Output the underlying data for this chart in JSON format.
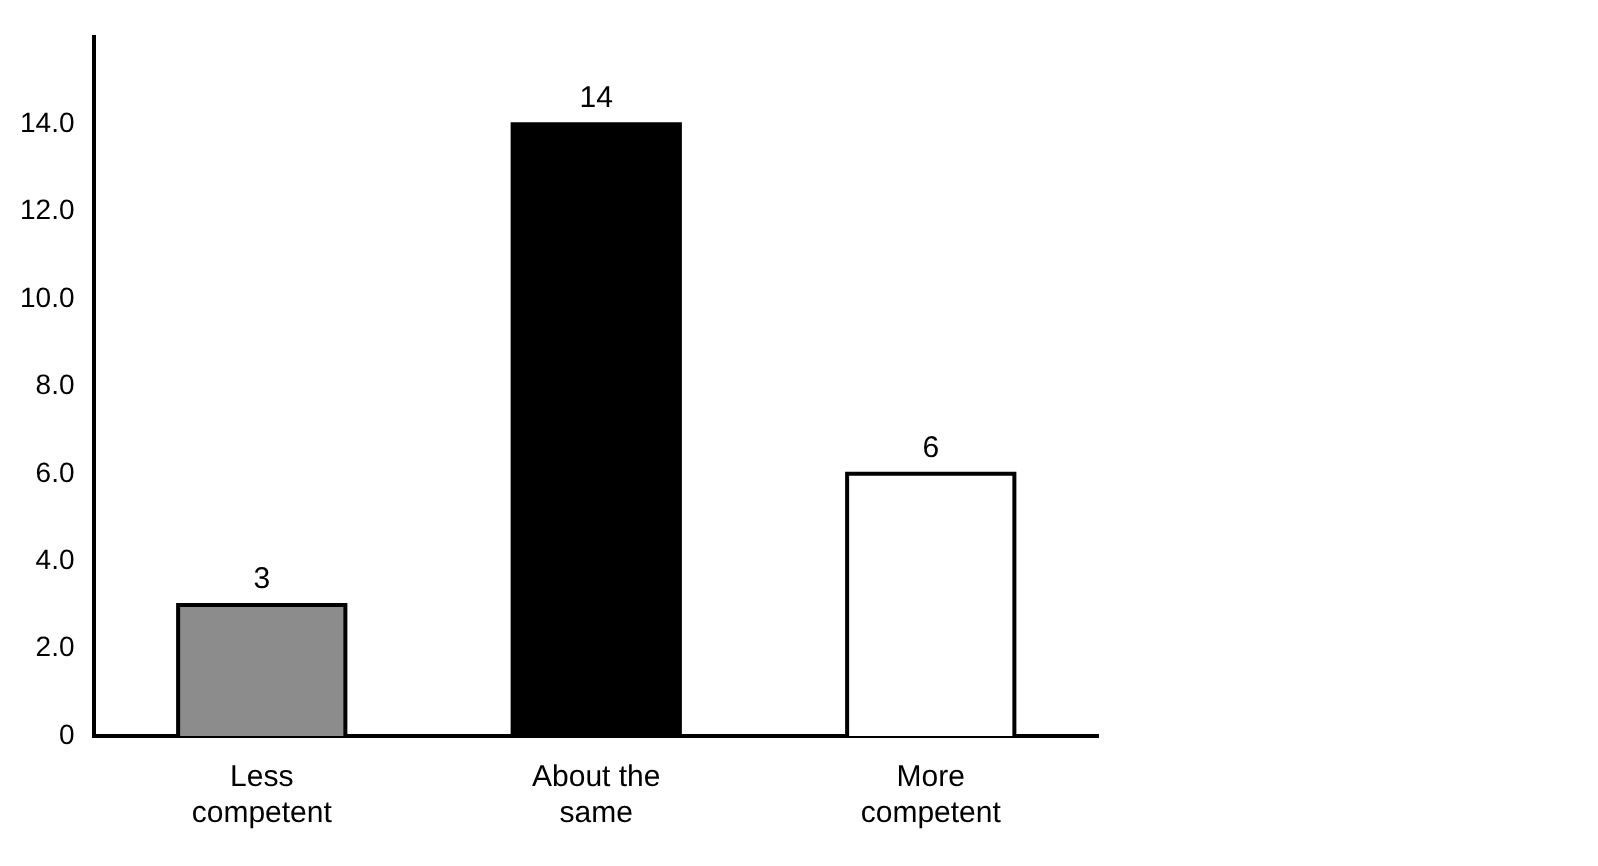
{
  "chart_data": {
    "type": "bar",
    "categories": [
      "Less competent",
      "About the same",
      "More competent"
    ],
    "values": [
      3,
      14,
      6
    ],
    "colors": [
      "#8c8c8c",
      "#000000",
      "#ffffff"
    ],
    "data_labels": true,
    "ylim": [
      0,
      16
    ],
    "yticks": [
      0,
      {
        "value": 2,
        "label": "2.0"
      },
      {
        "value": 4,
        "label": "4.0"
      },
      {
        "value": 6,
        "label": "6.0"
      },
      {
        "value": 8,
        "label": "8.0"
      },
      {
        "value": 10,
        "label": "10.0"
      },
      {
        "value": 12,
        "label": "12.0"
      },
      {
        "value": 14,
        "label": "14.0"
      }
    ],
    "grid": false,
    "legend": false
  }
}
